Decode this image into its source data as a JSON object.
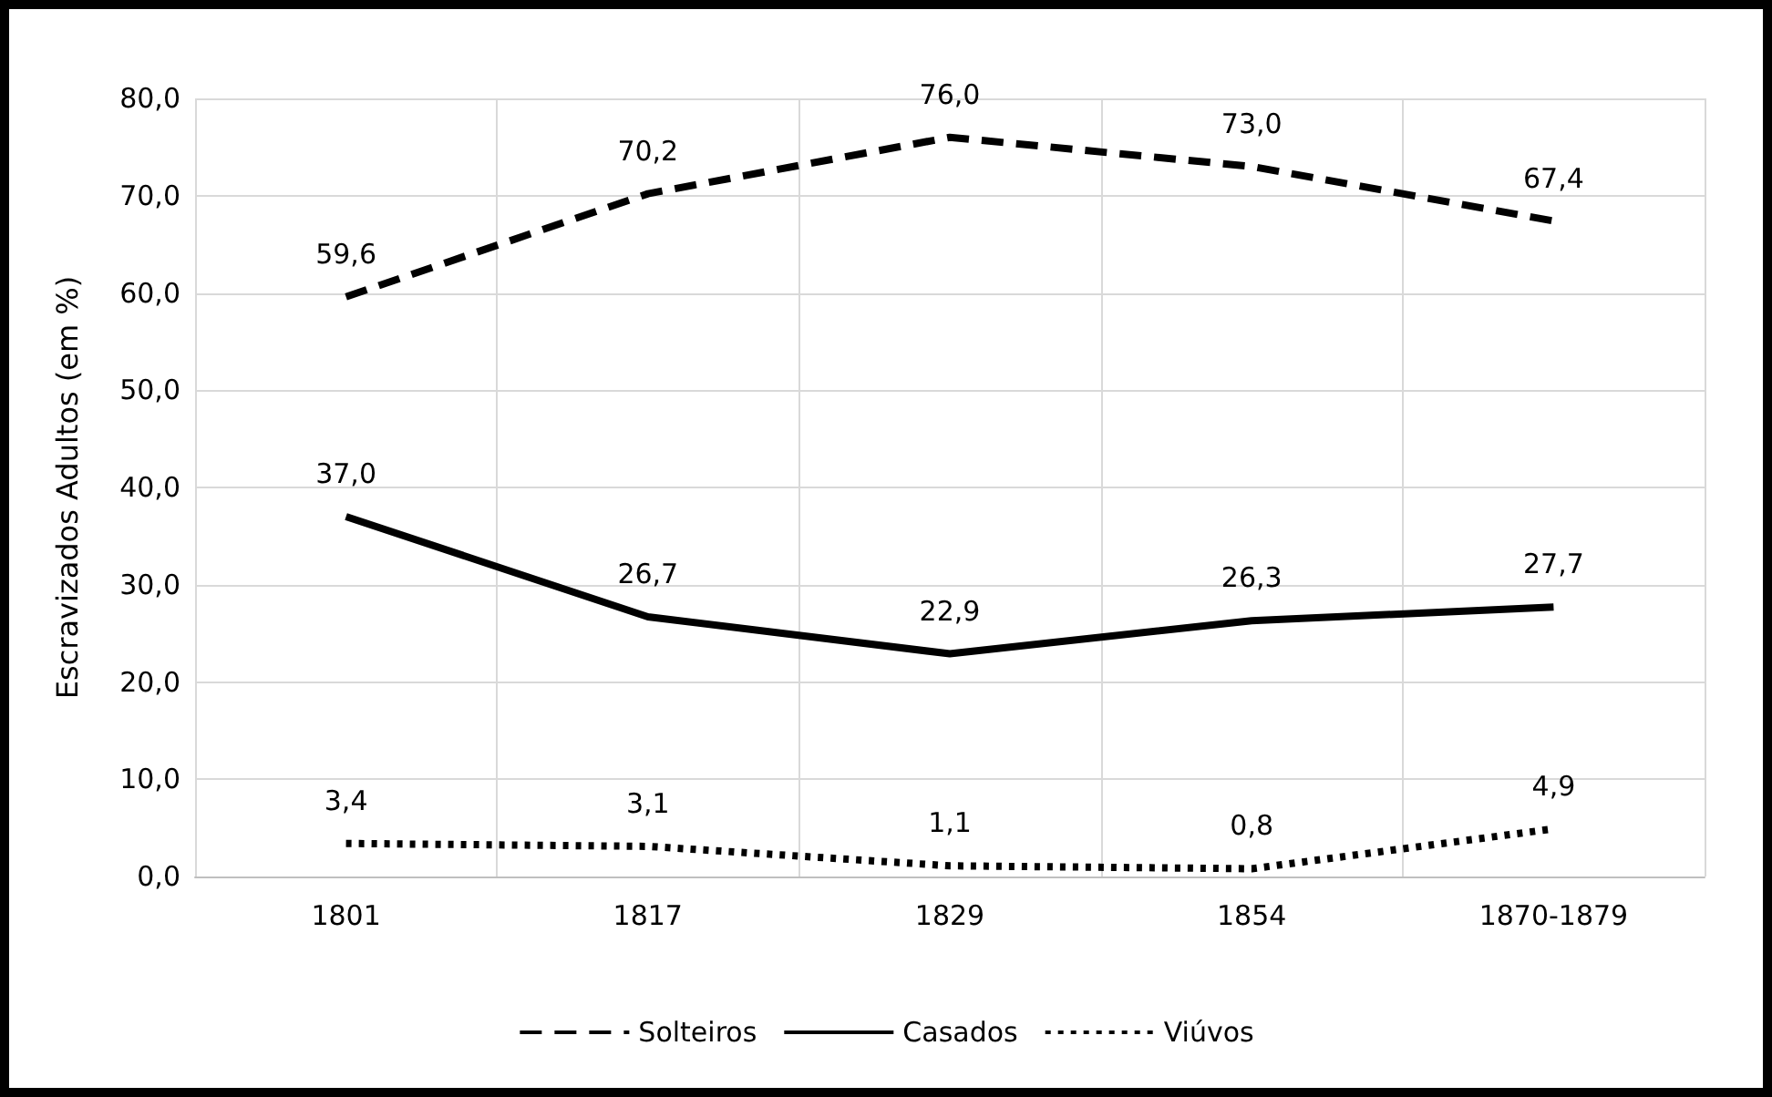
{
  "chart_data": {
    "type": "line",
    "ylabel": "Escravizados Adultos (em %)",
    "categories": [
      "1801",
      "1817",
      "1829",
      "1854",
      "1870-1879"
    ],
    "series": [
      {
        "name": "Solteiros",
        "color": "#000000",
        "line_style": "dashed",
        "values": [
          59.6,
          70.2,
          76.0,
          73.0,
          67.4
        ],
        "value_labels": [
          "59,6",
          "70,2",
          "76,0",
          "73,0",
          "67,4"
        ]
      },
      {
        "name": "Casados",
        "color": "#000000",
        "line_style": "solid",
        "values": [
          37.0,
          26.7,
          22.9,
          26.3,
          27.7
        ],
        "value_labels": [
          "37,0",
          "26,7",
          "22,9",
          "26,3",
          "27,7"
        ]
      },
      {
        "name": "Viúvos",
        "color": "#000000",
        "line_style": "dotted",
        "values": [
          3.4,
          3.1,
          1.1,
          0.8,
          4.9
        ],
        "value_labels": [
          "3,4",
          "3,1",
          "1,1",
          "0,8",
          "4,9"
        ]
      }
    ],
    "ylim": [
      0,
      80
    ],
    "yticks": [
      {
        "value": 0,
        "label": "0,0"
      },
      {
        "value": 10,
        "label": "10,0"
      },
      {
        "value": 20,
        "label": "20,0"
      },
      {
        "value": 30,
        "label": "30,0"
      },
      {
        "value": 40,
        "label": "40,0"
      },
      {
        "value": 50,
        "label": "50,0"
      },
      {
        "value": 60,
        "label": "60,0"
      },
      {
        "value": 70,
        "label": "70,0"
      },
      {
        "value": 80,
        "label": "80,0"
      }
    ],
    "grid": true,
    "legend": "bottom",
    "marker": "none"
  }
}
